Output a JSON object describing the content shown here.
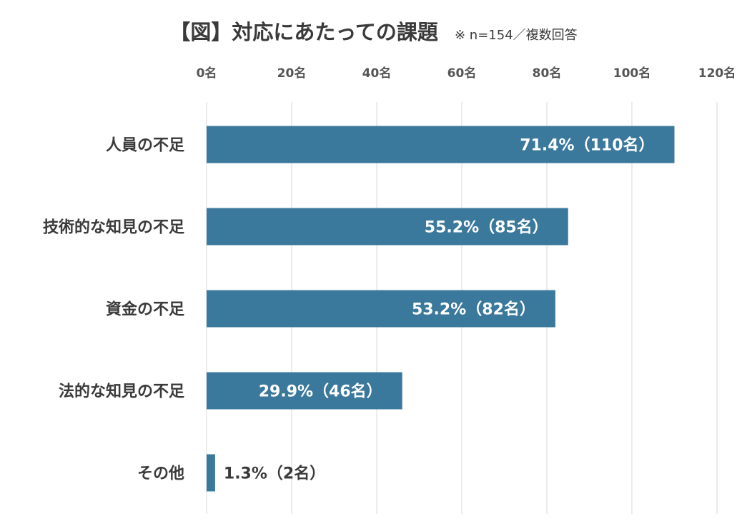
{
  "chart_data": {
    "type": "bar",
    "orientation": "horizontal",
    "title": "【図】対応にあたっての課題",
    "subtitle": "※ n=154／複数回答",
    "categories": [
      "人員の不足",
      "技術的な知見の不足",
      "資金の不足",
      "法的な知見の不足",
      "その他"
    ],
    "values": [
      110,
      85,
      82,
      46,
      2
    ],
    "data_labels": [
      "71.4%（110名）",
      "55.2%（85名）",
      "53.2%（82名）",
      "29.9%（46名）",
      "1.3%（2名）"
    ],
    "xlim": [
      0,
      120
    ],
    "x_ticks": [
      0,
      20,
      40,
      60,
      80,
      100,
      120
    ],
    "x_tick_labels": [
      "0名",
      "20名",
      "40名",
      "60名",
      "80名",
      "100名",
      "120名"
    ],
    "x_axis_position": "top",
    "grid": true,
    "bar_color": "#3a789c",
    "label_color_inside": "#ffffff",
    "label_color_outside": "#3a3a3a"
  }
}
